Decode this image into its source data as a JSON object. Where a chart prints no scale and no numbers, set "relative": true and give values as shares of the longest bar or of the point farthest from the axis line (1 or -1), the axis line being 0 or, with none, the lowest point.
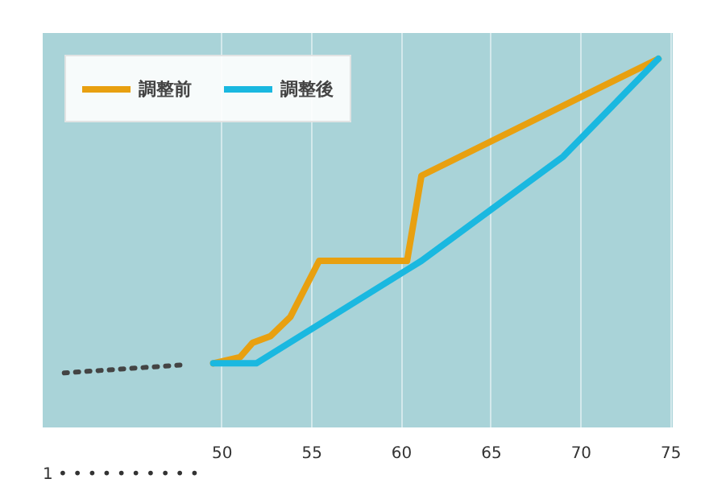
{
  "chart_data": {
    "type": "line",
    "relative": true,
    "xlim": [
      40.0,
      75.1
    ],
    "xticks": [
      50,
      55,
      60,
      65,
      70,
      75
    ],
    "annotations": [
      "1 • • • • • • • • • •"
    ],
    "grid": "x",
    "legend": "top left",
    "line_style": "solid",
    "marker": "none",
    "series": [
      {
        "color": "#444444",
        "line_style": "dotted",
        "x": [
          41.2,
          47.9
        ],
        "values": [
          0.148,
          0.17
        ]
      },
      {
        "name": "調整前",
        "color": "#e8a010",
        "x": [
          49.5,
          51.0,
          51.7,
          52.7,
          53.8,
          55.4,
          60.3,
          61.1,
          74.3
        ],
        "values": [
          0.174,
          0.191,
          0.23,
          0.248,
          0.3,
          0.452,
          0.452,
          0.683,
          1.0
        ]
      },
      {
        "name": "調整後",
        "color": "#1ab8e0",
        "x": [
          49.5,
          51.9,
          61.1,
          69.0,
          74.3
        ],
        "values": [
          0.174,
          0.174,
          0.452,
          0.735,
          1.0
        ]
      }
    ]
  }
}
